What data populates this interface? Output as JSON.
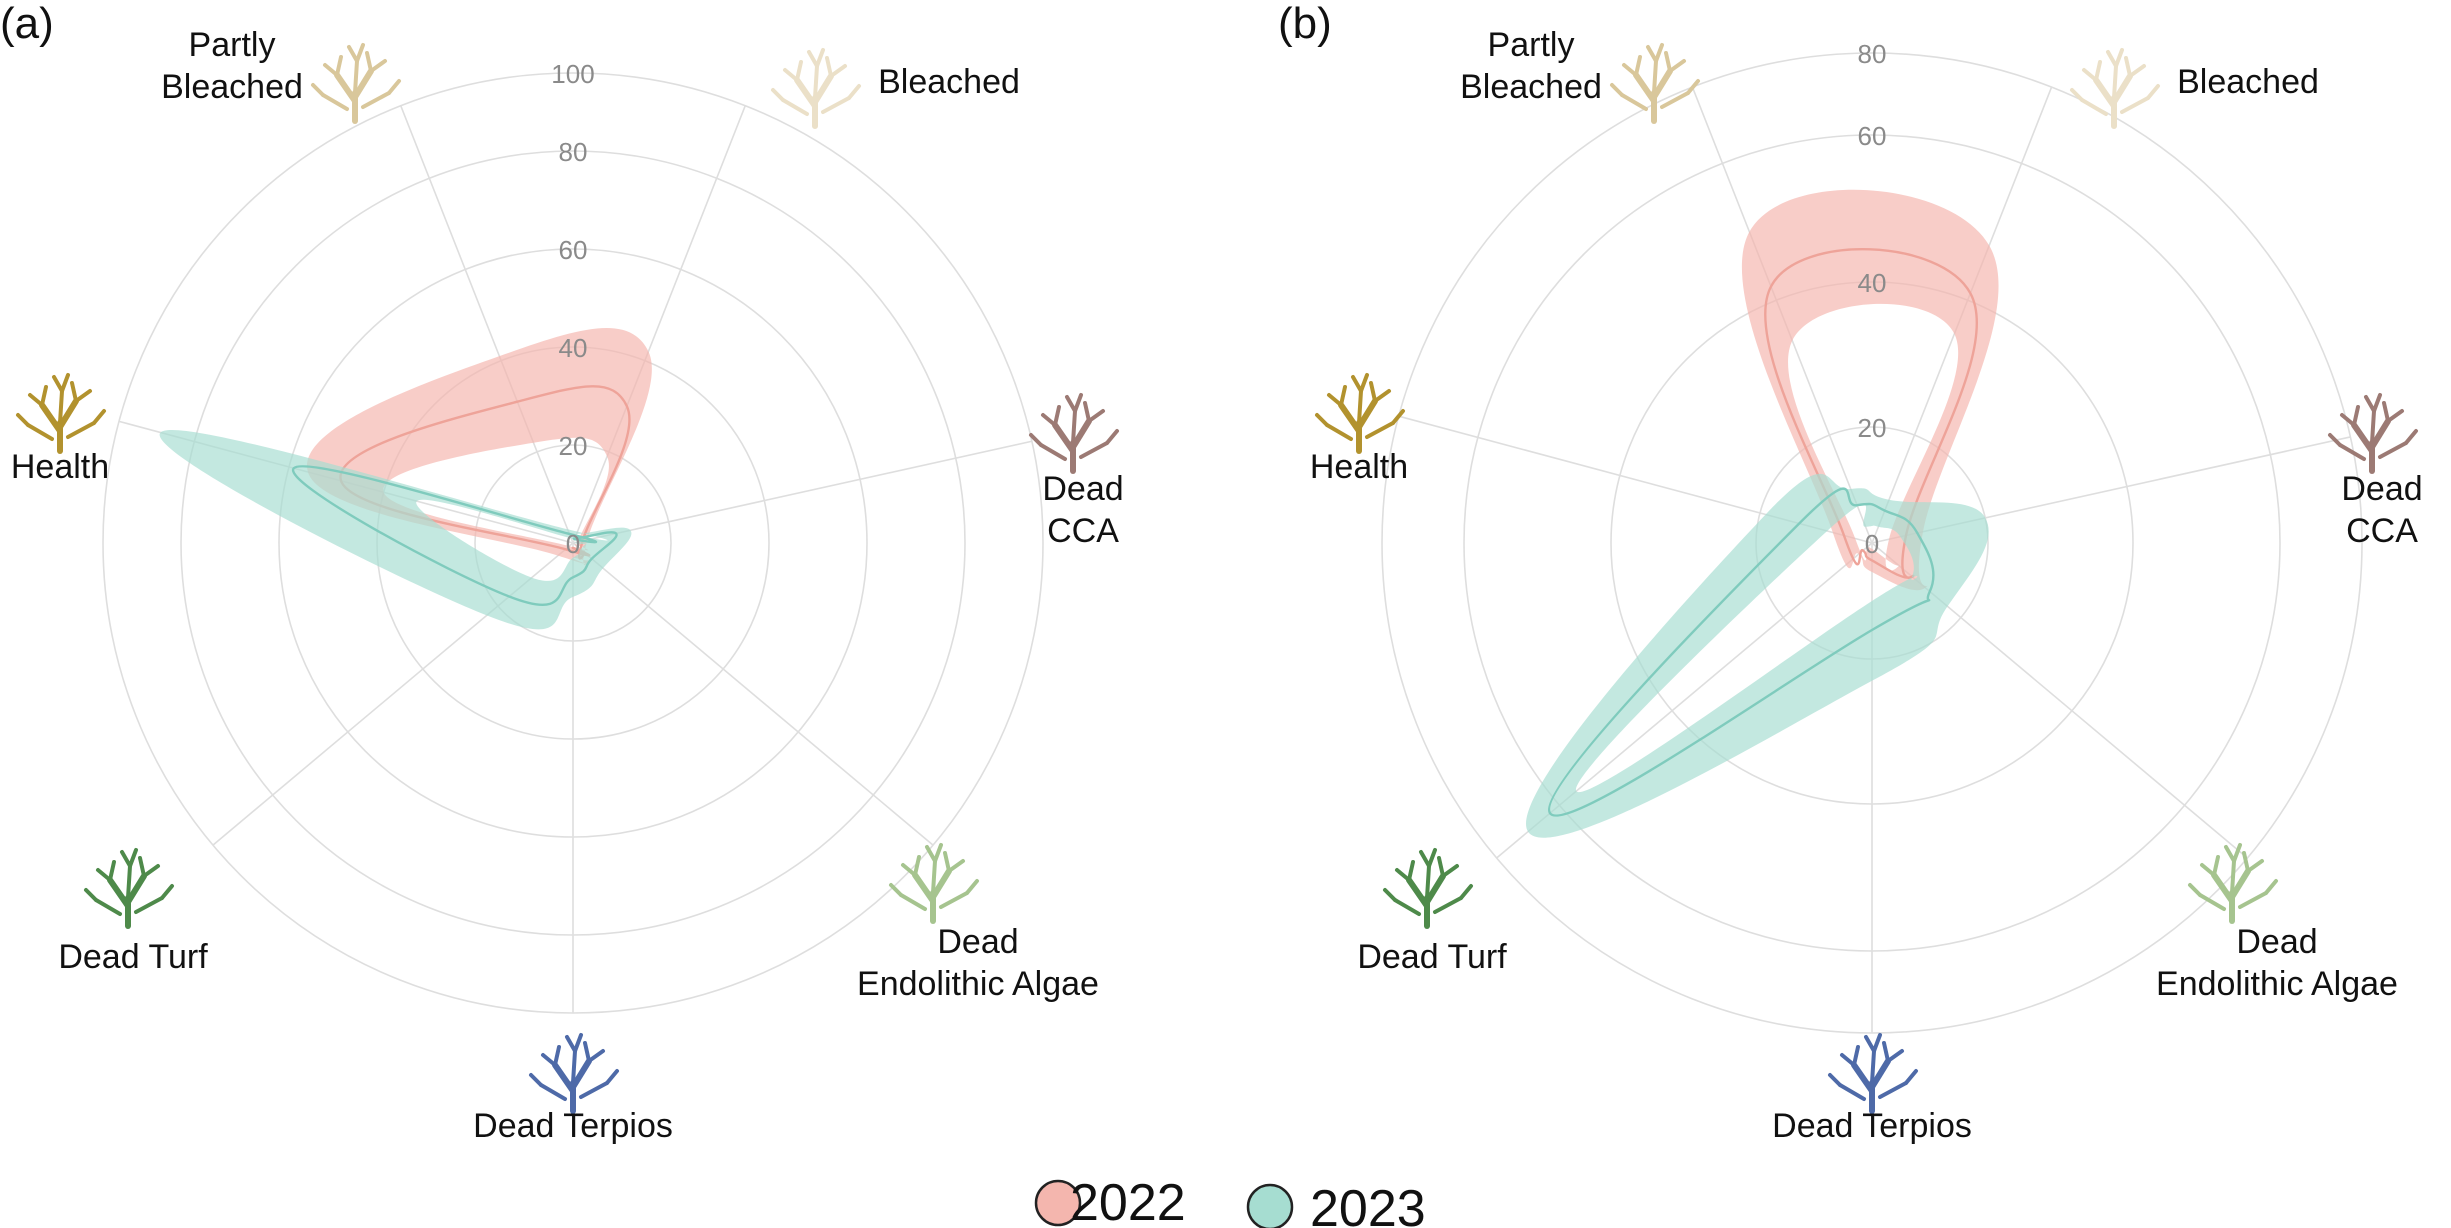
{
  "figure": {
    "legend": [
      {
        "label": "2022",
        "color": "#f4b6ae"
      },
      {
        "label": "2023",
        "color": "#a6ddd1"
      }
    ],
    "categories": [
      "Partly Bleached",
      "Bleached",
      "Dead CCA",
      "Dead Endolithic Algae",
      "Dead Terpios",
      "Dead Turf",
      "Health"
    ],
    "category_lines": [
      [
        "Partly",
        "Bleached"
      ],
      [
        "Bleached"
      ],
      [
        "Dead",
        "CCA"
      ],
      [
        "Dead",
        "Endolithic Algae"
      ],
      [
        "Dead Terpios"
      ],
      [
        "Dead Turf"
      ],
      [
        "Health"
      ]
    ],
    "category_icon_colors": [
      "#d9c79b",
      "#ebe0c8",
      "#9c7a74",
      "#a6c48f",
      "#4e6aa8",
      "#4e8a4a",
      "#b2922e"
    ]
  },
  "chart_data": [
    {
      "type": "radar",
      "panel_label": "(a)",
      "categories": [
        "Partly Bleached",
        "Bleached",
        "Dead CCA",
        "Dead Endolithic Algae",
        "Dead Terpios",
        "Dead Turf",
        "Health"
      ],
      "radial_ticks": [
        "0",
        "20",
        "40",
        "60",
        "80",
        "100"
      ],
      "rlim": [
        0,
        100
      ],
      "series": [
        {
          "name": "2022",
          "color": "#f4b6ae",
          "mean": [
            31,
            30,
            2,
            3,
            1,
            2,
            49
          ],
          "lower": [
            22,
            19,
            1,
            1,
            0,
            1,
            40
          ],
          "upper": [
            41,
            42,
            3,
            5,
            3,
            4,
            56
          ]
        },
        {
          "name": "2023",
          "color": "#a6ddd1",
          "mean": [
            2,
            1,
            9,
            5,
            7,
            17,
            59
          ],
          "lower": [
            1,
            0,
            3,
            2,
            3,
            11,
            33
          ],
          "upper": [
            3,
            2,
            12,
            8,
            11,
            23,
            89
          ]
        }
      ]
    },
    {
      "type": "radar",
      "panel_label": "(b)",
      "categories": [
        "Partly Bleached",
        "Bleached",
        "Dead CCA",
        "Dead Endolithic Algae",
        "Dead Terpios",
        "Dead Turf",
        "Health"
      ],
      "radial_ticks": [
        "0",
        "20",
        "40",
        "60",
        "80"
      ],
      "rlim": [
        0,
        80
      ],
      "series": [
        {
          "name": "2022",
          "color": "#f4b6ae",
          "mean": [
            42,
            41,
            6,
            9,
            3,
            2,
            5
          ],
          "lower": [
            34,
            35,
            3,
            6,
            1,
            1,
            3
          ],
          "upper": [
            50,
            48,
            9,
            12,
            5,
            3,
            7
          ]
        },
        {
          "name": "2023",
          "color": "#a6ddd1",
          "mean": [
            7,
            6,
            8,
            13,
            15,
            63,
            13
          ],
          "lower": [
            3,
            3,
            5,
            9,
            10,
            57,
            8
          ],
          "upper": [
            10,
            8,
            20,
            17,
            23,
            70,
            19
          ]
        }
      ]
    }
  ]
}
